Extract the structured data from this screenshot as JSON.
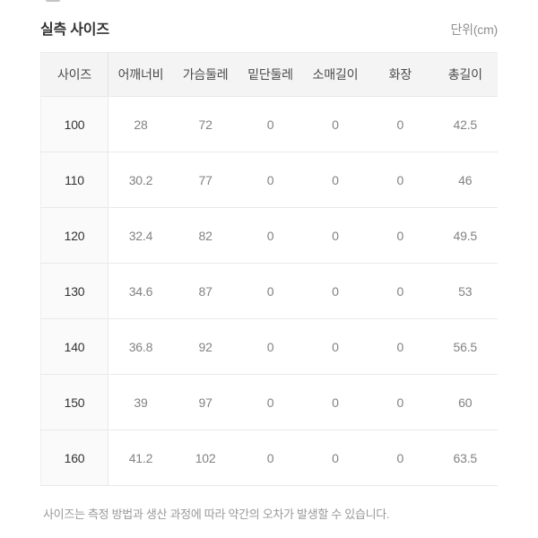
{
  "page": {
    "title": "실측 사이즈",
    "unit_label": "단위(cm)",
    "footnote": "사이즈는 측정 방법과 생산 과정에 따라 약간의 오차가 발생할 수 있습니다."
  },
  "table": {
    "columns": [
      "사이즈",
      "어깨너비",
      "가슴둘레",
      "밑단둘레",
      "소매길이",
      "화장",
      "총길이"
    ],
    "rows": [
      [
        "100",
        "28",
        "72",
        "0",
        "0",
        "0",
        "42.5"
      ],
      [
        "110",
        "30.2",
        "77",
        "0",
        "0",
        "0",
        "46"
      ],
      [
        "120",
        "32.4",
        "82",
        "0",
        "0",
        "0",
        "49.5"
      ],
      [
        "130",
        "34.6",
        "87",
        "0",
        "0",
        "0",
        "53"
      ],
      [
        "140",
        "36.8",
        "92",
        "0",
        "0",
        "0",
        "56.5"
      ],
      [
        "150",
        "39",
        "97",
        "0",
        "0",
        "0",
        "60"
      ],
      [
        "160",
        "41.2",
        "102",
        "0",
        "0",
        "0",
        "63.5"
      ]
    ]
  },
  "colors": {
    "header_bg": "#f4f4f4",
    "row_label_bg": "#fafafa",
    "border": "#e9e9e9",
    "title_text": "#333333",
    "muted_text": "#8f8f8f",
    "value_text": "#828282"
  }
}
